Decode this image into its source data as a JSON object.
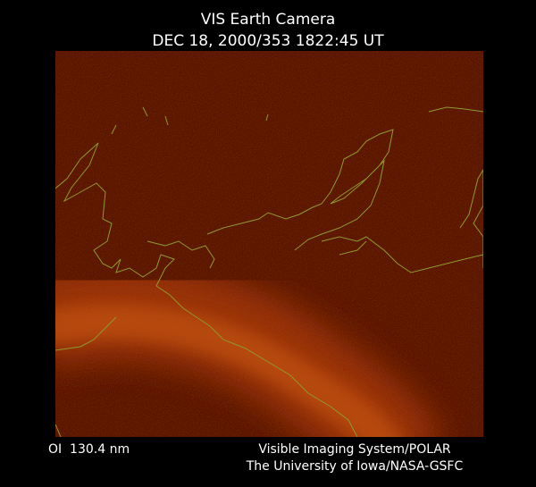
{
  "header": {
    "title": "VIS Earth Camera",
    "subtitle": "DEC 18, 2000/353 1822:45 UT"
  },
  "footer": {
    "instrument": "OI  130.4 nm",
    "credit_line1": "Visible Imaging System/POLAR",
    "credit_line2": "The University of Iowa/NASA-GSFC"
  }
}
